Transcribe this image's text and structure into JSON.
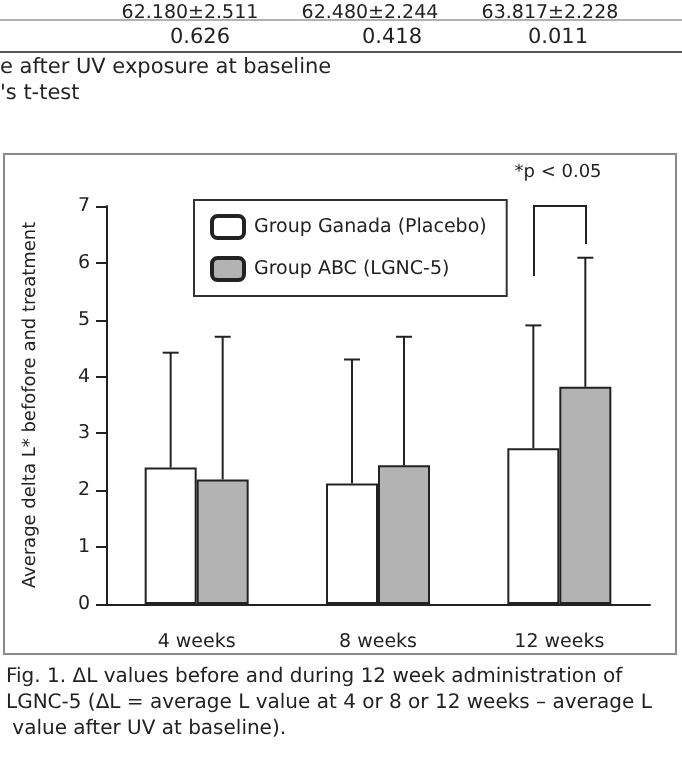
{
  "chart_data": {
    "type": "bar",
    "ylabel": "Average delta L* befofore and treatment",
    "categories": [
      "4 weeks",
      "8 weeks",
      "12 weeks"
    ],
    "series": [
      {
        "name": "Group Ganada (Placebo)",
        "color": "#ffffff",
        "values": [
          2.4,
          2.12,
          2.74
        ],
        "errors": [
          [
            2.4,
            4.42
          ],
          [
            2.12,
            4.3
          ],
          [
            2.74,
            4.9
          ]
        ]
      },
      {
        "name": "Group ABC (LGNC-5)",
        "color": "#b3b3b3",
        "values": [
          2.19,
          2.44,
          3.82
        ],
        "errors": [
          [
            2.19,
            4.7
          ],
          [
            2.44,
            4.7
          ],
          [
            3.82,
            6.09
          ]
        ]
      }
    ],
    "ylim": [
      0,
      7
    ],
    "yticks": [
      0,
      1,
      2,
      3,
      4,
      5,
      6,
      7
    ],
    "grid": false,
    "legend": "top left",
    "annotations": [
      "62.180±2.511",
      "62.480±2.244",
      "63.817±2.228",
      "0.626",
      "0.418",
      "0.011",
      "e after UV exposure at baseline",
      "'s t-test",
      "*p < 0.05",
      "Fig. 1. ΔL values before and during 12 week administration of LGNC-5 (ΔL = average L value at 4 or 8 or 12 weeks – average L value after UV at baseline)."
    ]
  }
}
